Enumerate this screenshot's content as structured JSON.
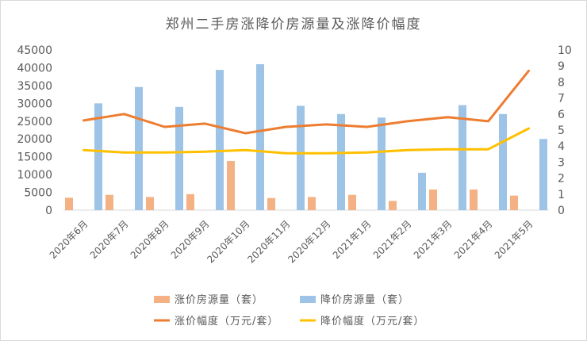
{
  "chart_data": {
    "type": "bar",
    "title": "郑州二手房涨降价房源量及涨降价幅度",
    "categories": [
      "2020年6月",
      "2020年7月",
      "2020年8月",
      "2020年9月",
      "2020年10月",
      "2020年11月",
      "2020年12月",
      "2021年1月",
      "2021年2月",
      "2021年3月",
      "2021年4月",
      "2021年5月"
    ],
    "y_left": {
      "min": 0,
      "max": 45000,
      "step": 5000,
      "ticks": [
        "0",
        "5000",
        "10000",
        "15000",
        "20000",
        "25000",
        "30000",
        "35000",
        "40000",
        "45000"
      ]
    },
    "y_right": {
      "min": 0,
      "max": 10,
      "step": 1,
      "ticks": [
        "0",
        "1",
        "2",
        "3",
        "4",
        "5",
        "6",
        "7",
        "8",
        "9",
        "10"
      ]
    },
    "series": [
      {
        "name": "涨价房源量（套）",
        "kind": "bar",
        "axis": "left",
        "color": "#F4B183",
        "values": [
          3500,
          4300,
          3700,
          4500,
          13800,
          3400,
          3700,
          4300,
          2600,
          5800,
          5800,
          4100
        ]
      },
      {
        "name": "降价房源量（套）",
        "kind": "bar",
        "axis": "left",
        "color": "#9DC3E6",
        "values": [
          30000,
          34600,
          29000,
          39400,
          41000,
          29300,
          27000,
          26000,
          10500,
          29500,
          27000,
          20000
        ]
      },
      {
        "name": "涨价幅度（万元/套）",
        "kind": "line",
        "axis": "right",
        "color": "#ED7D31",
        "values": [
          5.6,
          6.0,
          5.2,
          5.4,
          4.8,
          5.2,
          5.35,
          5.2,
          5.55,
          5.8,
          5.55,
          8.7
        ]
      },
      {
        "name": "降价幅度（万元/套）",
        "kind": "line",
        "axis": "right",
        "color": "#FFC000",
        "values": [
          3.75,
          3.6,
          3.6,
          3.65,
          3.75,
          3.55,
          3.55,
          3.6,
          3.75,
          3.8,
          3.8,
          5.1
        ]
      }
    ],
    "legend": {
      "position": "bottom"
    },
    "grid": false
  }
}
